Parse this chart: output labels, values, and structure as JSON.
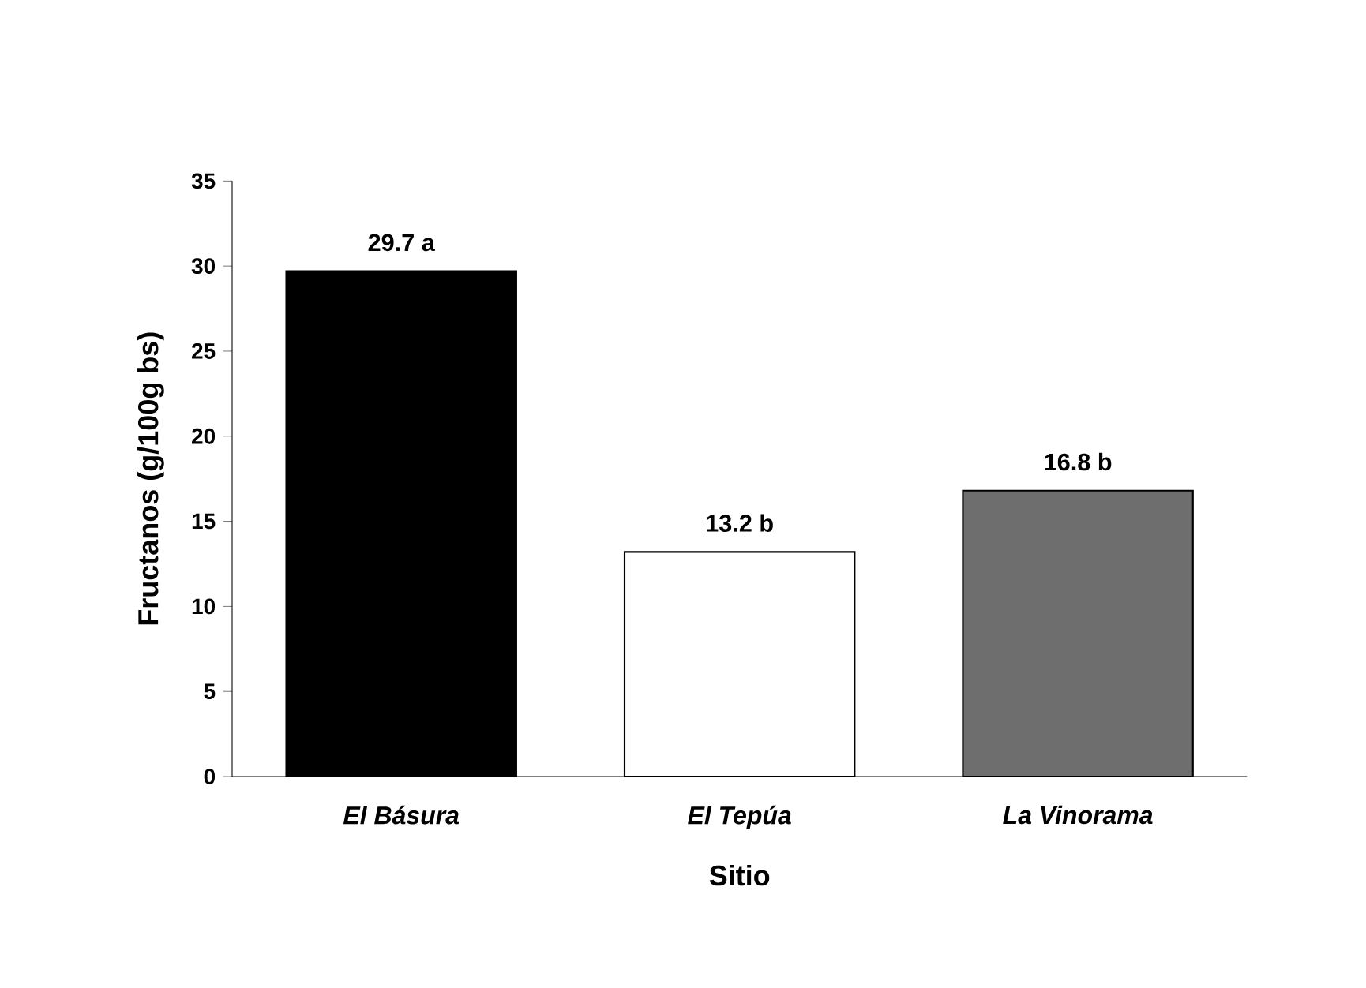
{
  "chart_data": {
    "type": "bar",
    "xlabel": "Sitio",
    "ylabel": "Fructanos (g/100g bs)",
    "categories": [
      "El Básura",
      "El Tepúa",
      "La Vinorama"
    ],
    "values": [
      29.7,
      13.2,
      16.8
    ],
    "colors": [
      "#000000",
      "#ffffff",
      "#6e6e6e"
    ],
    "value_labels": [
      "29.7 a",
      "13.2 b",
      "16.8 b"
    ],
    "ylim": [
      0,
      35
    ],
    "yticks": [
      0,
      5,
      10,
      15,
      20,
      25,
      30,
      35
    ]
  }
}
